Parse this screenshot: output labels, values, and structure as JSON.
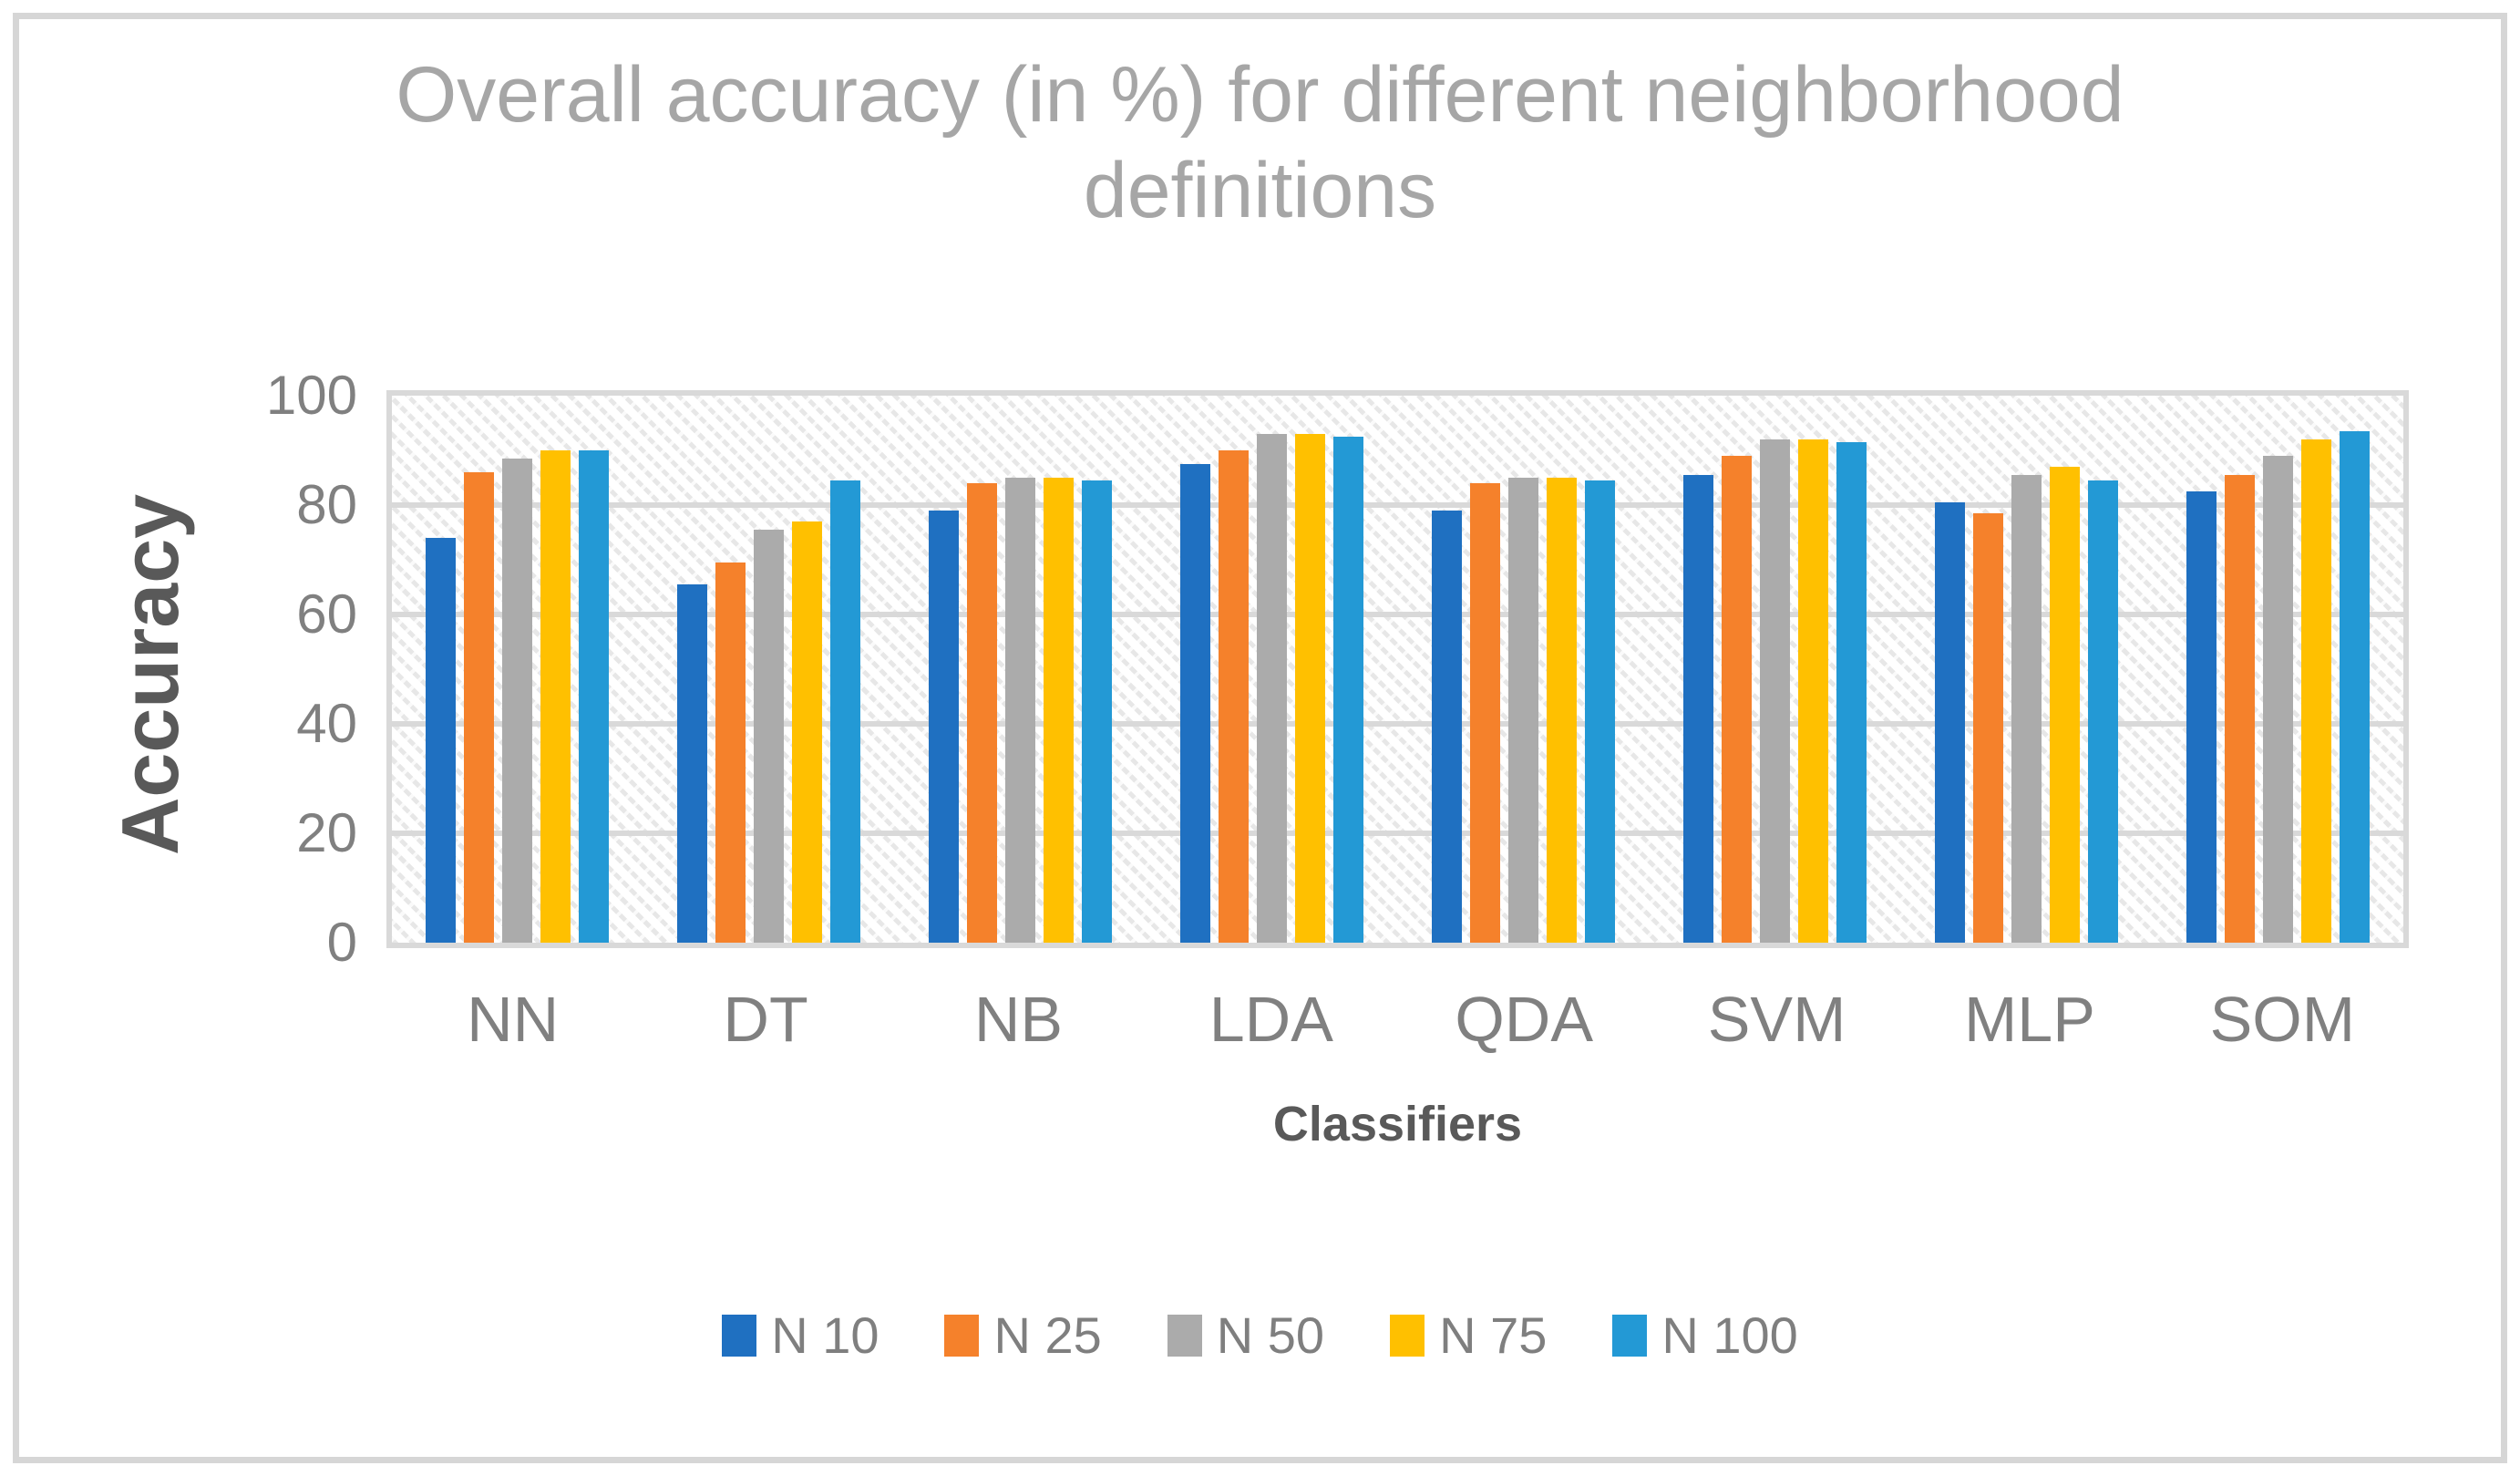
{
  "chart_data": {
    "type": "bar",
    "title": "Overall accuracy (in %) for different neighborhood definitions",
    "xlabel": "Classifiers",
    "ylabel": "Accuracy",
    "ylim": [
      0,
      100
    ],
    "yticks": [
      0,
      20,
      40,
      60,
      80,
      100
    ],
    "grid": true,
    "legend_position": "bottom",
    "plot_background": "diagonal-hatch",
    "colors": {
      "gridline": "#D9D9D9",
      "title_text": "#A6A6A6",
      "tick_text": "#808080",
      "axis_title_text": "#595959",
      "legend_text": "#7F7F7F"
    },
    "categories": [
      "NN",
      "DT",
      "NB",
      "LDA",
      "QDA",
      "SVM",
      "MLP",
      "SOM"
    ],
    "series": [
      {
        "name": "N 10",
        "color": "#1F70C1",
        "values": [
          74,
          65.5,
          79,
          87.5,
          79,
          85.5,
          80.5,
          82.5
        ]
      },
      {
        "name": "N 25",
        "color": "#F5812B",
        "values": [
          86,
          69.5,
          84,
          90,
          84,
          89,
          78.5,
          85.5
        ]
      },
      {
        "name": "N 50",
        "color": "#ABABAB",
        "values": [
          88.5,
          75.5,
          85,
          93,
          85,
          92,
          85.5,
          89
        ]
      },
      {
        "name": "N 75",
        "color": "#FFC000",
        "values": [
          90,
          77,
          85,
          93,
          85,
          92,
          87,
          92
        ]
      },
      {
        "name": "N 100",
        "color": "#2399D5",
        "values": [
          90,
          84.5,
          84.5,
          92.5,
          84.5,
          91.5,
          84.5,
          93.5
        ]
      }
    ]
  }
}
